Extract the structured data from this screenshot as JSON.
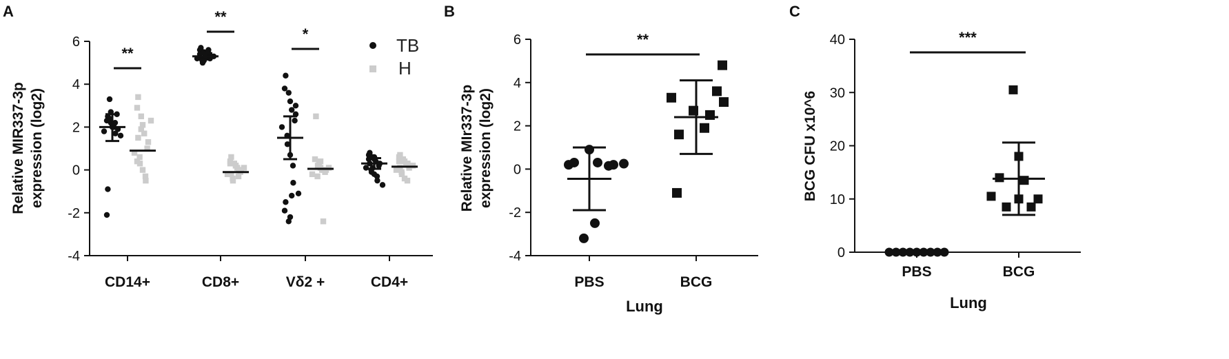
{
  "panels": {
    "A": "A",
    "B": "B",
    "C": "C"
  },
  "colors": {
    "tb": "#111111",
    "h": "#cccccc",
    "axis": "#111111"
  },
  "chart_data": [
    {
      "panel": "A",
      "type": "scatter",
      "ylabel_lines": [
        "Relative MIR337-3p",
        "expression (log2)"
      ],
      "xlabel": "",
      "ylim": [
        -4,
        6
      ],
      "yticks": [
        -4,
        -2,
        0,
        2,
        4,
        6
      ],
      "categories": [
        "CD14+",
        "CD8+",
        "Vδ2 +",
        "CD4+"
      ],
      "legend": [
        "TB",
        "H"
      ],
      "legend_position": "top-right",
      "series": [
        {
          "name": "TB",
          "marker": "circle",
          "points": [
            [
              2.5,
              2.3,
              2.2,
              2.1,
              2.0,
              1.9,
              2.6,
              1.8,
              2.4,
              3.3,
              2.0,
              2.2,
              1.7,
              1.6,
              -0.9,
              -2.1,
              2.7
            ],
            [
              5.7,
              5.6,
              5.5,
              5.4,
              5.3,
              5.3,
              5.2,
              5.2,
              5.1,
              5.0,
              5.4,
              5.5,
              5.6,
              5.3,
              5.2,
              5.4,
              5.1,
              5.3
            ],
            [
              4.4,
              3.8,
              3.6,
              3.2,
              2.8,
              2.6,
              2.3,
              2.0,
              1.6,
              1.2,
              0.7,
              0.2,
              -0.6,
              -1.1,
              -1.5,
              -1.9,
              -2.4,
              -2.2,
              -1.2,
              3.0
            ],
            [
              0.8,
              0.7,
              0.6,
              0.5,
              0.4,
              0.3,
              0.2,
              0.1,
              0.0,
              -0.1,
              -0.2,
              -0.3,
              -0.5,
              -0.7,
              0.3,
              0.5,
              0.1,
              0.6
            ]
          ],
          "means": [
            2.0,
            5.3,
            1.5,
            0.3
          ],
          "sd_upper": [
            2.6,
            5.45,
            2.5,
            0.55
          ],
          "sd_lower": [
            1.35,
            5.15,
            0.5,
            0.05
          ]
        },
        {
          "name": "H",
          "marker": "square",
          "points": [
            [
              3.4,
              2.9,
              2.5,
              2.1,
              1.7,
              1.3,
              1.0,
              0.8,
              0.6,
              0.3,
              0.0,
              -0.3,
              -0.5,
              2.3,
              1.5,
              0.4,
              1.9
            ],
            [
              0.6,
              0.4,
              0.3,
              0.2,
              0.1,
              0.0,
              -0.1,
              -0.2,
              -0.4,
              -0.5,
              0.2,
              -0.3,
              0.0,
              0.1,
              -0.2,
              0.3
            ],
            [
              2.5,
              0.5,
              0.3,
              0.1,
              0.0,
              0.0,
              -0.1,
              -0.2,
              -0.3,
              0.2,
              0.4,
              -2.4,
              0.0,
              0.1
            ],
            [
              0.7,
              0.6,
              0.5,
              0.4,
              0.3,
              0.2,
              0.1,
              0.0,
              -0.1,
              -0.2,
              -0.4,
              -0.5,
              0.3,
              0.2,
              0.1,
              0.4
            ]
          ],
          "means": [
            0.9,
            -0.1,
            0.05,
            0.15
          ]
        }
      ],
      "significance": [
        {
          "category": "CD14+",
          "label": "**"
        },
        {
          "category": "CD8+",
          "label": "**"
        },
        {
          "category": "Vδ2 +",
          "label": "*"
        }
      ]
    },
    {
      "panel": "B",
      "type": "scatter",
      "ylabel_lines": [
        "Relative MIr337-3p",
        "expression (log2)"
      ],
      "xlabel": "Lung",
      "ylim": [
        -4,
        6
      ],
      "yticks": [
        -4,
        -2,
        0,
        2,
        4,
        6
      ],
      "categories": [
        "PBS",
        "BCG"
      ],
      "series": [
        {
          "name": "PBS",
          "marker": "circle",
          "values": [
            0.9,
            0.2,
            0.3,
            0.3,
            0.2,
            0.15,
            -2.5,
            -3.2,
            0.25
          ],
          "mean": -0.45,
          "sd_upper": 1.0,
          "sd_lower": -1.9
        },
        {
          "name": "BCG",
          "marker": "square",
          "values": [
            4.8,
            3.6,
            3.1,
            2.7,
            1.6,
            1.9,
            3.3,
            -1.1,
            2.5
          ],
          "mean": 2.4,
          "sd_upper": 4.1,
          "sd_lower": 0.7
        }
      ],
      "significance": [
        {
          "from": "PBS",
          "to": "BCG",
          "label": "**"
        }
      ]
    },
    {
      "panel": "C",
      "type": "scatter",
      "ylabel_lines": [
        "BCG CFU x10^6"
      ],
      "xlabel": "Lung",
      "ylim": [
        0,
        40
      ],
      "yticks": [
        0,
        10,
        20,
        30,
        40
      ],
      "categories": [
        "PBS",
        "BCG"
      ],
      "series": [
        {
          "name": "PBS",
          "marker": "circle",
          "values": [
            0,
            0,
            0,
            0,
            0,
            0,
            0,
            0,
            0
          ],
          "mean": 0,
          "sd_upper": 0,
          "sd_lower": 0
        },
        {
          "name": "BCG",
          "marker": "square",
          "values": [
            30.5,
            18.0,
            14.0,
            13.5,
            10.5,
            10.0,
            10.0,
            8.5,
            8.5
          ],
          "mean": 13.8,
          "sd_upper": 20.6,
          "sd_lower": 7.0
        }
      ],
      "significance": [
        {
          "from": "PBS",
          "to": "BCG",
          "label": "***"
        }
      ]
    }
  ]
}
